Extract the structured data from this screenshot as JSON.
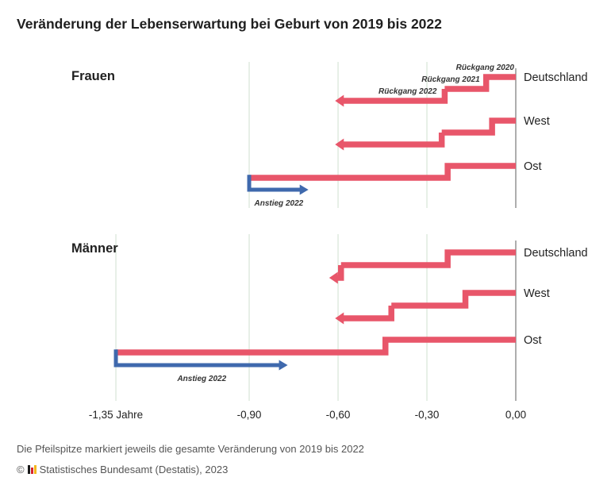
{
  "title": "Veränderung der Lebenserwartung bei Geburt von 2019 bis 2022",
  "footnote": "Die Pfeilspitze markiert jeweils die gesamte Veränderung von 2019 bis 2022",
  "source": {
    "copyright": "©",
    "text": "Statistisches Bundesamt (Destatis), 2023",
    "logo_colors": [
      "#1a1a1a",
      "#d7242d",
      "#f3b71b"
    ]
  },
  "colors": {
    "decline": "#e8566a",
    "increase": "#3f69ad",
    "grid": "#cfe0cf",
    "zero_axis": "#777777"
  },
  "chart_data": {
    "type": "step-arrow",
    "x_axis": {
      "range": [
        -1.35,
        0.0
      ],
      "ticks": [
        -1.35,
        -0.9,
        -0.6,
        -0.3,
        0.0
      ],
      "tick_labels": [
        "-1,35 Jahre",
        "-0,90",
        "-0,60",
        "-0,30",
        "0,00"
      ]
    },
    "panels": [
      {
        "name": "Frauen",
        "series": [
          {
            "name": "Deutschland",
            "steps": [
              {
                "year": "2020",
                "change": -0.1,
                "label": "Rückgang 2020"
              },
              {
                "year": "2021",
                "change": -0.24,
                "label": "Rückgang 2021"
              },
              {
                "year": "2022",
                "change": -0.61,
                "label": "Rückgang 2022"
              }
            ]
          },
          {
            "name": "West",
            "steps": [
              {
                "year": "2020",
                "change": -0.08,
                "label": ""
              },
              {
                "year": "2021",
                "change": -0.25,
                "label": ""
              },
              {
                "year": "2022",
                "change": -0.61,
                "label": ""
              }
            ]
          },
          {
            "name": "Ost",
            "steps": [
              {
                "year": "2020",
                "change": -0.23,
                "label": ""
              },
              {
                "year": "2021",
                "change": -0.9,
                "label": ""
              },
              {
                "year": "2022",
                "change": -0.7,
                "label": "Anstieg 2022"
              }
            ]
          }
        ]
      },
      {
        "name": "Männer",
        "series": [
          {
            "name": "Deutschland",
            "steps": [
              {
                "year": "2020",
                "change": -0.23,
                "label": ""
              },
              {
                "year": "2021",
                "change": -0.59,
                "label": ""
              },
              {
                "year": "2022",
                "change": -0.63,
                "label": ""
              }
            ]
          },
          {
            "name": "West",
            "steps": [
              {
                "year": "2020",
                "change": -0.17,
                "label": ""
              },
              {
                "year": "2021",
                "change": -0.42,
                "label": ""
              },
              {
                "year": "2022",
                "change": -0.61,
                "label": ""
              }
            ]
          },
          {
            "name": "Ost",
            "steps": [
              {
                "year": "2020",
                "change": -0.44,
                "label": ""
              },
              {
                "year": "2021",
                "change": -1.35,
                "label": ""
              },
              {
                "year": "2022",
                "change": -0.77,
                "label": "Anstieg 2022"
              }
            ]
          }
        ]
      }
    ]
  }
}
